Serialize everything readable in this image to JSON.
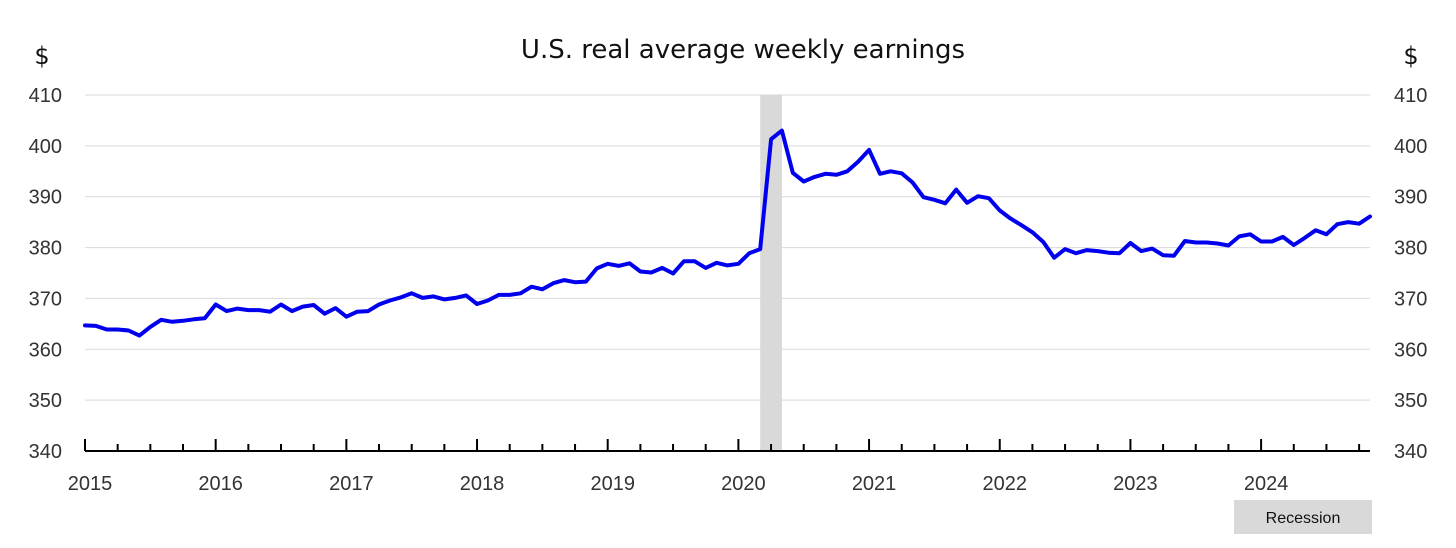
{
  "chart_data": {
    "type": "line",
    "title": "U.S. real average weekly earnings",
    "ylabel_left": "$",
    "ylabel_right": "$",
    "ylim": [
      340,
      410
    ],
    "yticks": [
      340,
      350,
      360,
      370,
      380,
      390,
      400,
      410
    ],
    "xlim": [
      "2015-01",
      "2024-11"
    ],
    "xticks": [
      "2015",
      "2016",
      "2017",
      "2018",
      "2019",
      "2020",
      "2021",
      "2022",
      "2023",
      "2024"
    ],
    "grid": true,
    "legend": {
      "placement": "bottom-right",
      "entries": [
        "Recession"
      ]
    },
    "recession": {
      "start": "2020-03",
      "end": "2020-04",
      "label": "Recession",
      "color": "#d9d9d9"
    },
    "series": [
      {
        "color": "#0000ee",
        "x": [
          "2015-01",
          "2015-02",
          "2015-03",
          "2015-04",
          "2015-05",
          "2015-06",
          "2015-07",
          "2015-08",
          "2015-09",
          "2015-10",
          "2015-11",
          "2015-12",
          "2016-01",
          "2016-02",
          "2016-03",
          "2016-04",
          "2016-05",
          "2016-06",
          "2016-07",
          "2016-08",
          "2016-09",
          "2016-10",
          "2016-11",
          "2016-12",
          "2017-01",
          "2017-02",
          "2017-03",
          "2017-04",
          "2017-05",
          "2017-06",
          "2017-07",
          "2017-08",
          "2017-09",
          "2017-10",
          "2017-11",
          "2017-12",
          "2018-01",
          "2018-02",
          "2018-03",
          "2018-04",
          "2018-05",
          "2018-06",
          "2018-07",
          "2018-08",
          "2018-09",
          "2018-10",
          "2018-11",
          "2018-12",
          "2019-01",
          "2019-02",
          "2019-03",
          "2019-04",
          "2019-05",
          "2019-06",
          "2019-07",
          "2019-08",
          "2019-09",
          "2019-10",
          "2019-11",
          "2019-12",
          "2020-01",
          "2020-02",
          "2020-03",
          "2020-04",
          "2020-05",
          "2020-06",
          "2020-07",
          "2020-08",
          "2020-09",
          "2020-10",
          "2020-11",
          "2020-12",
          "2021-01",
          "2021-02",
          "2021-03",
          "2021-04",
          "2021-05",
          "2021-06",
          "2021-07",
          "2021-08",
          "2021-09",
          "2021-10",
          "2021-11",
          "2021-12",
          "2022-01",
          "2022-02",
          "2022-03",
          "2022-04",
          "2022-05",
          "2022-06",
          "2022-07",
          "2022-08",
          "2022-09",
          "2022-10",
          "2022-11",
          "2022-12",
          "2023-01",
          "2023-02",
          "2023-03",
          "2023-04",
          "2023-05",
          "2023-06",
          "2023-07",
          "2023-08",
          "2023-09",
          "2023-10",
          "2023-11",
          "2023-12",
          "2024-01",
          "2024-02",
          "2024-03",
          "2024-04",
          "2024-05",
          "2024-06",
          "2024-07",
          "2024-08",
          "2024-09",
          "2024-10",
          "2024-11"
        ],
        "values": [
          364.7,
          364.6,
          363.9,
          363.9,
          363.7,
          362.7,
          364.4,
          365.8,
          365.4,
          365.6,
          365.9,
          366.1,
          368.8,
          367.5,
          368.0,
          367.7,
          367.7,
          367.4,
          368.8,
          367.5,
          368.4,
          368.7,
          367.0,
          368.1,
          366.4,
          367.4,
          367.5,
          368.8,
          369.6,
          370.2,
          371.0,
          370.1,
          370.4,
          369.8,
          370.1,
          370.6,
          368.9,
          369.6,
          370.7,
          370.7,
          371.0,
          372.3,
          371.8,
          373.0,
          373.6,
          373.2,
          373.3,
          375.9,
          376.8,
          376.4,
          376.9,
          375.3,
          375.1,
          376.0,
          374.9,
          377.3,
          377.3,
          376.0,
          377.0,
          376.5,
          376.8,
          378.9,
          379.7,
          401.3,
          403.0,
          394.7,
          393.0,
          393.9,
          394.5,
          394.3,
          395.0,
          396.9,
          399.2,
          394.5,
          395.0,
          394.6,
          392.8,
          389.9,
          389.4,
          388.7,
          391.4,
          388.8,
          390.1,
          389.7,
          387.3,
          385.7,
          384.4,
          383.0,
          381.1,
          378.0,
          379.7,
          378.9,
          379.5,
          379.3,
          379.0,
          378.9,
          380.9,
          379.3,
          379.8,
          378.5,
          378.4,
          381.3,
          381.0,
          381.0,
          380.8,
          380.4,
          382.2,
          382.6,
          381.2,
          381.2,
          382.1,
          380.5,
          381.9,
          383.4,
          382.6,
          384.6,
          385.0,
          384.7,
          386.1
        ]
      }
    ]
  }
}
